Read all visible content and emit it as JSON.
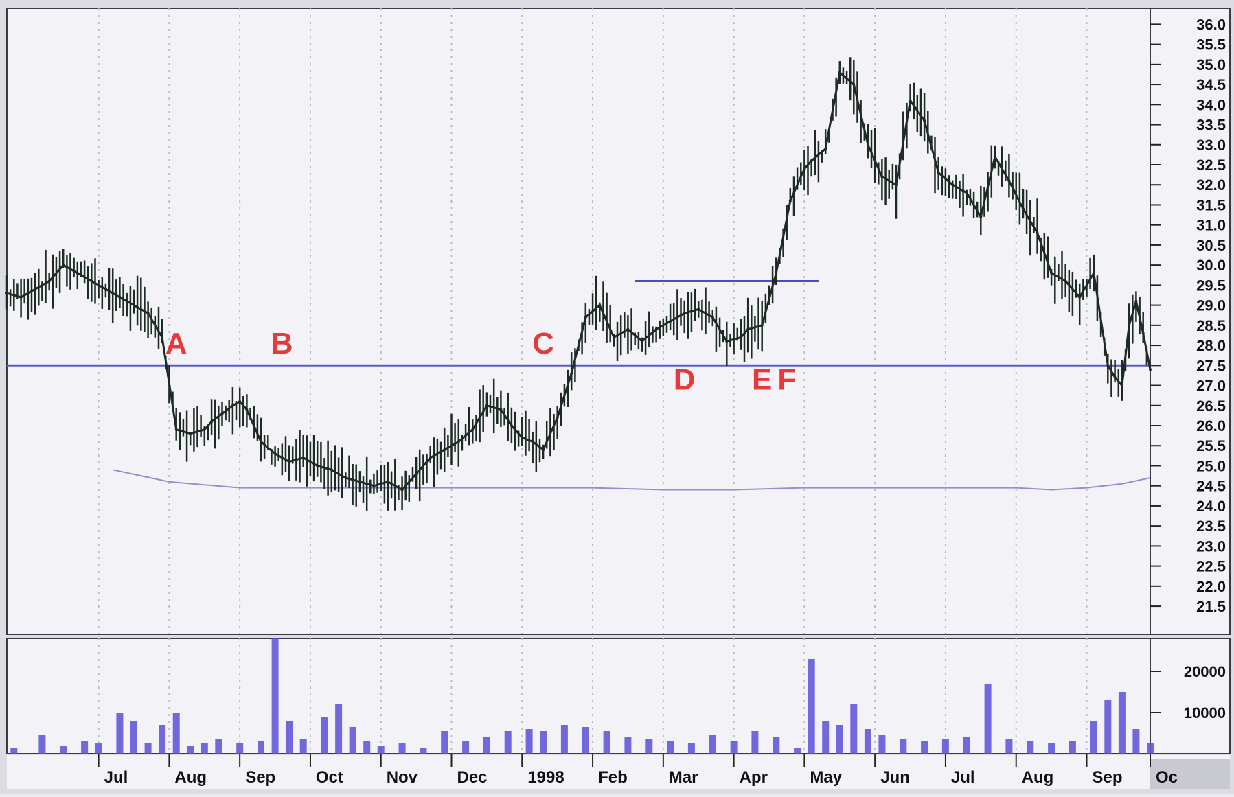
{
  "colors": {
    "price": "#1e2a24",
    "volume": "#5a4fd8",
    "support_line": "#5b5bc9",
    "resistance_line": "#4a4ad0",
    "moving_average": "#8f8fd8",
    "annotation": "#e8393a",
    "panel_background": "#f3f3f7",
    "gridline": "#b9b9c4"
  },
  "chart_data": [
    {
      "type": "line",
      "description_role": "price",
      "title": "",
      "xlabel": "",
      "ylabel": "",
      "x_tick_labels": [
        "Jul",
        "Aug",
        "Sep",
        "Oct",
        "Nov",
        "Dec",
        "1998",
        "Feb",
        "Mar",
        "Apr",
        "May",
        "Jun",
        "Jul",
        "Aug",
        "Sep",
        "Oc"
      ],
      "y_tick_labels": [
        "36.0",
        "35.5",
        "35.0",
        "34.5",
        "34.0",
        "33.5",
        "33.0",
        "32.5",
        "32.0",
        "31.5",
        "31.0",
        "30.5",
        "30.0",
        "29.5",
        "29.0",
        "28.5",
        "28.0",
        "27.5",
        "27.0",
        "26.5",
        "26.0",
        "25.5",
        "25.0",
        "24.5",
        "24.0",
        "23.5",
        "23.0",
        "22.5",
        "22.0",
        "21.5"
      ],
      "ylim": [
        20.8,
        36.4
      ],
      "grid": true,
      "x_months": [
        -0.3,
        1,
        2,
        3,
        4,
        5,
        6,
        7,
        8,
        9,
        10,
        11,
        12,
        13,
        14,
        15,
        15.9
      ],
      "series": [
        {
          "x": [
            -0.3,
            -0.1,
            0.1,
            0.3,
            0.5,
            0.7,
            0.9,
            1.1,
            1.3,
            1.5,
            1.7,
            1.9,
            2.1,
            2.3,
            2.5,
            2.6,
            2.75,
            2.9,
            3.0,
            3.1,
            3.2,
            3.3,
            3.5,
            3.7,
            3.9,
            4.1,
            4.3,
            4.5,
            4.7,
            4.9,
            5.1,
            5.3,
            5.5,
            5.7,
            5.9,
            6.1,
            6.3,
            6.5,
            6.7,
            6.85,
            7.0,
            7.15,
            7.3,
            7.5,
            7.7,
            7.9,
            8.1,
            8.3,
            8.5,
            8.7,
            8.9,
            9.1,
            9.3,
            9.5,
            9.7,
            9.9,
            10.1,
            10.2,
            10.4,
            10.6,
            10.8,
            11.0,
            11.1,
            11.3,
            11.5,
            11.7,
            11.9,
            12.1,
            12.3,
            12.5,
            12.7,
            12.9,
            13.1,
            13.3,
            13.5,
            13.7,
            13.9,
            14.1,
            14.3,
            14.5,
            14.7,
            14.9,
            15.1,
            15.3,
            15.4,
            15.5,
            15.6,
            15.7,
            15.8,
            15.9
          ],
          "y": [
            29.3,
            29.2,
            29.4,
            29.6,
            30.0,
            29.8,
            29.6,
            29.4,
            29.2,
            29.0,
            28.8,
            28.2,
            25.9,
            25.8,
            25.9,
            26.1,
            26.3,
            26.5,
            26.6,
            26.4,
            26.0,
            25.6,
            25.3,
            25.1,
            25.2,
            25.0,
            24.9,
            24.7,
            24.6,
            24.5,
            24.6,
            24.4,
            24.8,
            25.2,
            25.4,
            25.6,
            25.9,
            26.5,
            26.4,
            26.0,
            25.7,
            25.6,
            25.4,
            26.2,
            27.3,
            28.7,
            29.0,
            28.2,
            28.4,
            28.1,
            28.4,
            28.6,
            28.8,
            28.9,
            28.7,
            28.1,
            28.2,
            28.4,
            28.5,
            29.8,
            31.6,
            32.4,
            32.6,
            32.9,
            34.8,
            34.5,
            33.0,
            32.2,
            32.0,
            34.1,
            33.6,
            32.3,
            32.0,
            31.8,
            31.2,
            32.7,
            32.1,
            31.4,
            30.8,
            29.8,
            29.6,
            29.2,
            29.8,
            27.5,
            27.2,
            27.0,
            28.5,
            29.1,
            28.3,
            27.4
          ]
        }
      ],
      "annotations": [
        {
          "label": "A",
          "x": 2.1,
          "y": 27.8
        },
        {
          "label": "B",
          "x": 3.6,
          "y": 27.8
        },
        {
          "label": "C",
          "x": 7.3,
          "y": 27.8
        },
        {
          "label": "D",
          "x": 9.3,
          "y": 26.9
        },
        {
          "label": "E",
          "x": 10.4,
          "y": 26.9
        },
        {
          "label": "F",
          "x": 10.75,
          "y": 26.9
        }
      ],
      "support_level": 27.5,
      "resistance_level": 29.6,
      "resistance_x_range": [
        8.6,
        11.2
      ],
      "moving_average": {
        "x": [
          1.2,
          1.6,
          2.0,
          3.0,
          4.0,
          5.0,
          6.0,
          7.0,
          8.0,
          9.0,
          10.0,
          11.0,
          12.0,
          13.0,
          14.0,
          14.5,
          15.0,
          15.5,
          15.9
        ],
        "y": [
          24.9,
          24.75,
          24.6,
          24.45,
          24.45,
          24.45,
          24.45,
          24.45,
          24.45,
          24.4,
          24.4,
          24.45,
          24.45,
          24.45,
          24.45,
          24.4,
          24.45,
          24.55,
          24.7
        ]
      }
    },
    {
      "type": "bar",
      "description_role": "volume",
      "title": "",
      "xlabel": "",
      "ylabel": "",
      "y_tick_labels": [
        "20000",
        "10000"
      ],
      "ylim": [
        0,
        28000
      ],
      "grid": true,
      "x": [
        -0.2,
        0.2,
        0.5,
        0.8,
        1.0,
        1.3,
        1.5,
        1.7,
        1.9,
        2.1,
        2.3,
        2.5,
        2.7,
        3.0,
        3.3,
        3.5,
        3.7,
        3.9,
        4.2,
        4.4,
        4.6,
        4.8,
        5.0,
        5.3,
        5.6,
        5.9,
        6.2,
        6.5,
        6.8,
        7.1,
        7.3,
        7.6,
        7.9,
        8.2,
        8.5,
        8.8,
        9.1,
        9.4,
        9.7,
        10.0,
        10.3,
        10.6,
        10.9,
        11.1,
        11.3,
        11.5,
        11.7,
        11.9,
        12.1,
        12.4,
        12.7,
        13.0,
        13.3,
        13.6,
        13.9,
        14.2,
        14.5,
        14.8,
        15.1,
        15.3,
        15.5,
        15.7,
        15.9
      ],
      "values": [
        1500,
        4500,
        2000,
        3000,
        2500,
        10000,
        8000,
        2500,
        7000,
        10000,
        2000,
        2500,
        3500,
        2500,
        3000,
        28000,
        8000,
        3500,
        9000,
        12000,
        6500,
        3000,
        2000,
        2500,
        1500,
        5500,
        3000,
        4000,
        5500,
        6000,
        5500,
        7000,
        6500,
        5500,
        4000,
        3500,
        3000,
        2500,
        4500,
        3000,
        5500,
        4000,
        1500,
        23000,
        8000,
        7000,
        12000,
        6000,
        4500,
        3500,
        3000,
        3500,
        4000,
        17000,
        3500,
        3000,
        2500,
        3000,
        8000,
        13000,
        15000,
        6000,
        2500
      ]
    }
  ]
}
